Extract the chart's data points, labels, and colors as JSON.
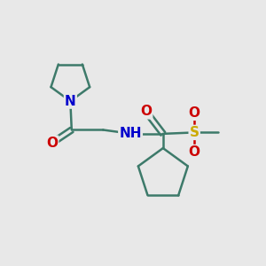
{
  "bg_color": "#e8e8e8",
  "bond_color": "#3d7a6a",
  "N_color": "#0000cc",
  "O_color": "#cc0000",
  "S_color": "#ccaa00",
  "line_width": 1.8,
  "font_size_atom": 11,
  "fig_size": [
    3.0,
    3.0
  ],
  "dpi": 100,
  "xlim": [
    0,
    10
  ],
  "ylim": [
    0,
    10
  ]
}
